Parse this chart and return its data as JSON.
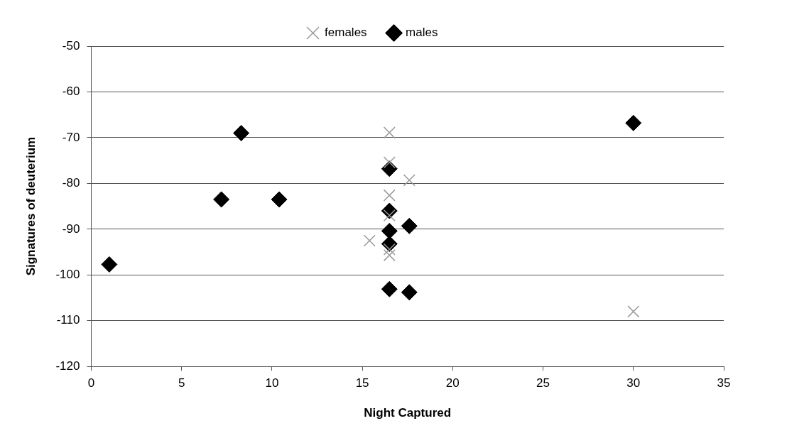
{
  "chart_data": {
    "type": "scatter",
    "xlabel": "Night Captured",
    "ylabel": "Signatures of deuterium",
    "xlim": [
      0,
      35
    ],
    "xticks": [
      0,
      5,
      10,
      15,
      20,
      25,
      30,
      35
    ],
    "ylim": [
      -120,
      -50
    ],
    "yticks": [
      -120,
      -110,
      -100,
      -90,
      -80,
      -70,
      -60,
      -50
    ],
    "grid": "y",
    "legend": "top",
    "series": [
      {
        "name": "males",
        "color": "#000000",
        "marker": "diamond",
        "x": [
          1.0,
          7.2,
          8.3,
          10.4,
          16.5,
          16.5,
          17.6,
          16.5,
          16.5,
          16.5,
          17.6,
          30.0
        ],
        "values": [
          -97.7,
          -83.5,
          -69.0,
          -83.5,
          -76.8,
          -86.0,
          -89.3,
          -90.4,
          -93.2,
          -103.1,
          -103.8,
          -66.8
        ]
      },
      {
        "name": "females",
        "color": "#999999",
        "marker": "cross",
        "x": [
          16.5,
          16.5,
          17.6,
          16.5,
          16.5,
          15.4,
          16.5,
          16.5,
          30.0
        ],
        "values": [
          -68.9,
          -75.4,
          -79.3,
          -82.6,
          -87.0,
          -92.5,
          -94.4,
          -95.7,
          -108.0
        ]
      }
    ]
  }
}
